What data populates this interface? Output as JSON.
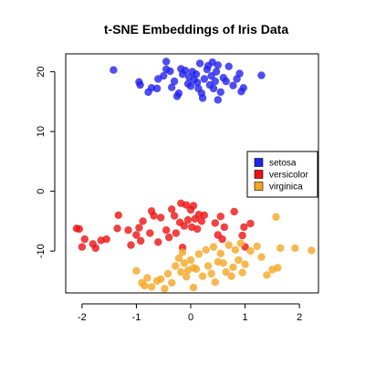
{
  "chart_data": {
    "type": "scatter",
    "title": "t-SNE Embeddings of Iris Data",
    "xlabel": "",
    "ylabel": "",
    "xlim": [
      -2.3,
      2.35
    ],
    "ylim": [
      -17,
      23
    ],
    "xticks": [
      -2,
      -1,
      0,
      1,
      2
    ],
    "yticks": [
      -10,
      0,
      10,
      20
    ],
    "grid": false,
    "legend_position": "right",
    "series": [
      {
        "name": "setosa",
        "color": "#2222ee",
        "points": [
          [
            -1.42,
            20.3
          ],
          [
            -0.95,
            18.3
          ],
          [
            -0.93,
            17.8
          ],
          [
            -0.78,
            16.6
          ],
          [
            -0.72,
            17.3
          ],
          [
            -0.62,
            17.2
          ],
          [
            -0.6,
            18.8
          ],
          [
            -0.5,
            19.3
          ],
          [
            -0.45,
            20.4
          ],
          [
            -0.45,
            21.7
          ],
          [
            -0.38,
            20.1
          ],
          [
            -0.35,
            17.4
          ],
          [
            -0.3,
            18.4
          ],
          [
            -0.25,
            15.9
          ],
          [
            -0.22,
            16.4
          ],
          [
            -0.18,
            20.5
          ],
          [
            -0.15,
            19.6
          ],
          [
            -0.1,
            20.2
          ],
          [
            -0.05,
            18.0
          ],
          [
            -0.03,
            19.1
          ],
          [
            0.0,
            17.6
          ],
          [
            0.03,
            20.0
          ],
          [
            0.06,
            18.7
          ],
          [
            0.1,
            19.6
          ],
          [
            0.12,
            18.2
          ],
          [
            0.14,
            17.2
          ],
          [
            0.17,
            21.4
          ],
          [
            0.2,
            16.4
          ],
          [
            0.22,
            15.6
          ],
          [
            0.25,
            18.8
          ],
          [
            0.3,
            20.4
          ],
          [
            0.32,
            21.0
          ],
          [
            0.35,
            17.8
          ],
          [
            0.38,
            19.3
          ],
          [
            0.4,
            21.6
          ],
          [
            0.42,
            17.2
          ],
          [
            0.45,
            18.4
          ],
          [
            0.47,
            20.0
          ],
          [
            0.5,
            21.1
          ],
          [
            0.5,
            15.3
          ],
          [
            0.55,
            16.6
          ],
          [
            0.6,
            19.0
          ],
          [
            0.65,
            18.4
          ],
          [
            0.7,
            20.9
          ],
          [
            0.78,
            17.7
          ],
          [
            0.85,
            18.8
          ],
          [
            0.9,
            19.7
          ],
          [
            0.93,
            16.7
          ],
          [
            0.97,
            17.3
          ],
          [
            1.3,
            19.4
          ]
        ]
      },
      {
        "name": "versicolor",
        "color": "#ee1111",
        "points": [
          [
            -2.1,
            -6.2
          ],
          [
            -2.05,
            -6.3
          ],
          [
            -2.0,
            -9.3
          ],
          [
            -1.95,
            -8.0
          ],
          [
            -1.8,
            -8.8
          ],
          [
            -1.75,
            -9.5
          ],
          [
            -1.65,
            -8.2
          ],
          [
            -1.55,
            -8.0
          ],
          [
            -1.35,
            -6.2
          ],
          [
            -1.33,
            -4.0
          ],
          [
            -1.15,
            -6.5
          ],
          [
            -1.1,
            -9.0
          ],
          [
            -1.0,
            -7.3
          ],
          [
            -0.95,
            -6.1
          ],
          [
            -0.92,
            -8.3
          ],
          [
            -0.88,
            -5.0
          ],
          [
            -0.75,
            -7.0
          ],
          [
            -0.72,
            -3.3
          ],
          [
            -0.68,
            -4.1
          ],
          [
            -0.6,
            -8.5
          ],
          [
            -0.55,
            -4.4
          ],
          [
            -0.45,
            -6.5
          ],
          [
            -0.4,
            -7.7
          ],
          [
            -0.35,
            -3.0
          ],
          [
            -0.3,
            -4.1
          ],
          [
            -0.27,
            -7.0
          ],
          [
            -0.2,
            -5.2
          ],
          [
            -0.18,
            -2.0
          ],
          [
            -0.15,
            -9.4
          ],
          [
            -0.12,
            -5.8
          ],
          [
            -0.08,
            -2.3
          ],
          [
            -0.05,
            -4.8
          ],
          [
            0.0,
            -3.1
          ],
          [
            0.02,
            -6.0
          ],
          [
            0.05,
            -2.4
          ],
          [
            0.08,
            -4.6
          ],
          [
            0.12,
            -6.3
          ],
          [
            0.15,
            -3.9
          ],
          [
            0.2,
            -5.0
          ],
          [
            0.25,
            -4.0
          ],
          [
            0.45,
            -5.3
          ],
          [
            0.5,
            -7.3
          ],
          [
            0.55,
            -4.2
          ],
          [
            0.58,
            -8.0
          ],
          [
            0.62,
            -6.0
          ],
          [
            0.8,
            -3.4
          ],
          [
            0.95,
            -7.4
          ],
          [
            0.98,
            -6.0
          ],
          [
            1.0,
            -9.3
          ],
          [
            1.1,
            -5.4
          ]
        ]
      },
      {
        "name": "virginica",
        "color": "#f5a623",
        "points": [
          [
            -1.0,
            -13.3
          ],
          [
            -0.9,
            -15.3
          ],
          [
            -0.85,
            -15.8
          ],
          [
            -0.8,
            -14.5
          ],
          [
            -0.72,
            -16.0
          ],
          [
            -0.62,
            -15.0
          ],
          [
            -0.55,
            -14.7
          ],
          [
            -0.48,
            -16.3
          ],
          [
            -0.42,
            -13.8
          ],
          [
            -0.35,
            -15.3
          ],
          [
            -0.28,
            -12.5
          ],
          [
            -0.22,
            -11.2
          ],
          [
            -0.18,
            -13.5
          ],
          [
            -0.15,
            -10.2
          ],
          [
            -0.12,
            -12.0
          ],
          [
            -0.08,
            -14.3
          ],
          [
            -0.05,
            -13.2
          ],
          [
            0.0,
            -11.5
          ],
          [
            0.05,
            -16.1
          ],
          [
            0.05,
            -12.8
          ],
          [
            0.1,
            -13.0
          ],
          [
            0.15,
            -10.5
          ],
          [
            0.22,
            -14.2
          ],
          [
            0.28,
            -9.8
          ],
          [
            0.32,
            -12.5
          ],
          [
            0.38,
            -13.8
          ],
          [
            0.42,
            -9.3
          ],
          [
            0.45,
            -15.2
          ],
          [
            0.5,
            -11.8
          ],
          [
            0.55,
            -10.4
          ],
          [
            0.6,
            -12.0
          ],
          [
            0.65,
            -13.5
          ],
          [
            0.7,
            -9.0
          ],
          [
            0.75,
            -14.2
          ],
          [
            0.78,
            -12.7
          ],
          [
            0.82,
            -9.8
          ],
          [
            0.88,
            -11.5
          ],
          [
            0.92,
            -8.7
          ],
          [
            0.95,
            -13.6
          ],
          [
            1.0,
            -12.2
          ],
          [
            1.1,
            -10.0
          ],
          [
            1.22,
            -9.2
          ],
          [
            1.3,
            -11.0
          ],
          [
            1.4,
            -14.0
          ],
          [
            1.5,
            -13.1
          ],
          [
            1.57,
            -4.3
          ],
          [
            1.6,
            -12.8
          ],
          [
            1.65,
            -9.5
          ],
          [
            1.92,
            -9.5
          ],
          [
            2.22,
            -9.9
          ]
        ]
      }
    ]
  }
}
